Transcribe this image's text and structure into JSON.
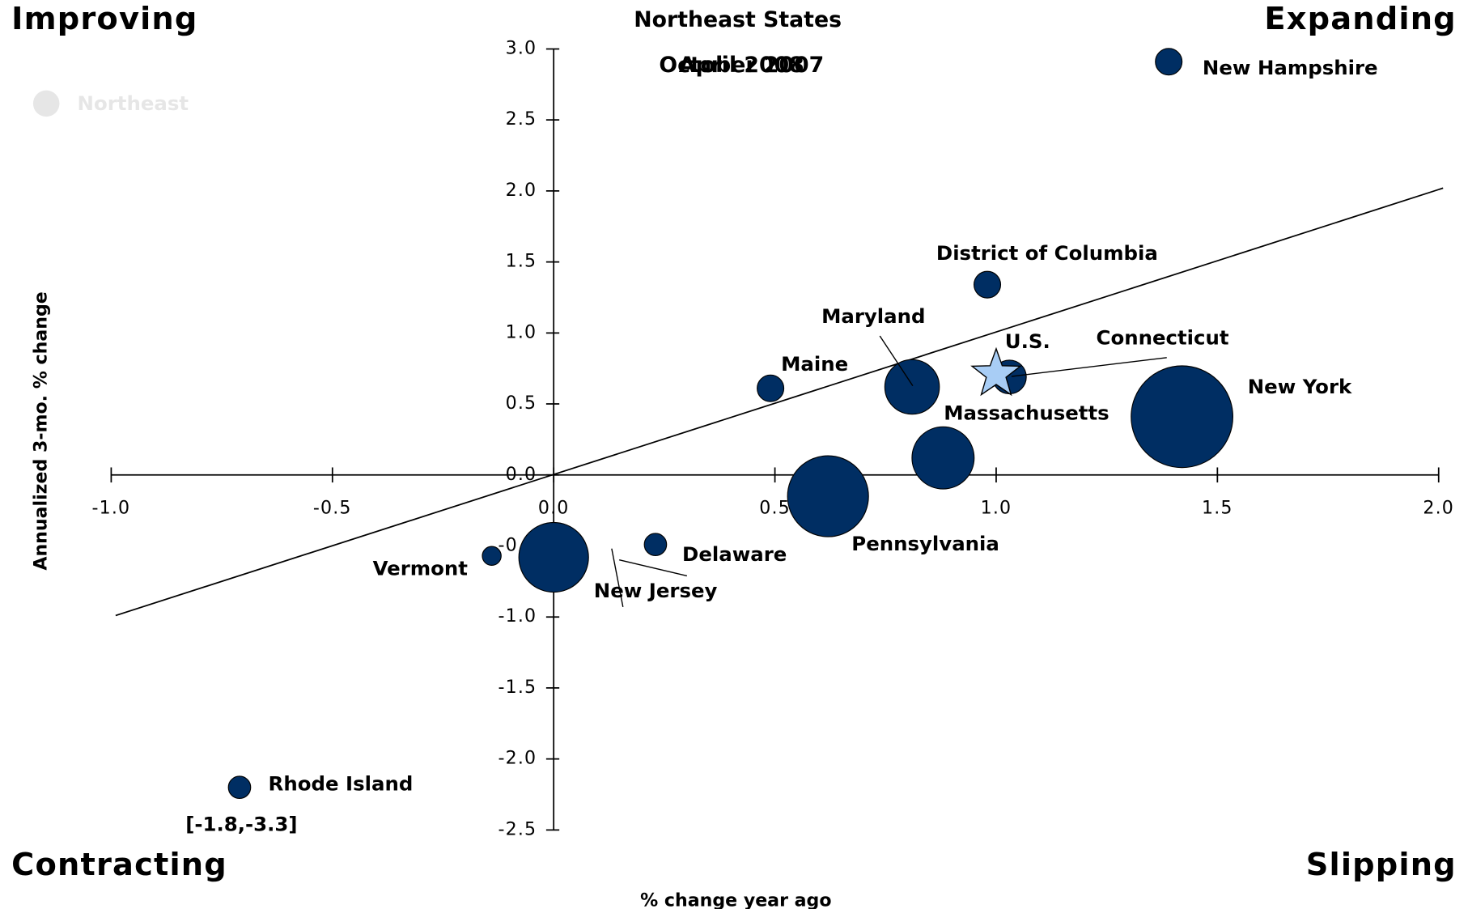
{
  "chart_data": {
    "type": "bubble",
    "title": "Northeast States",
    "subtitles": [
      "October 2007",
      "April 2008"
    ],
    "quadrant_labels": {
      "top_left": "Improving",
      "top_right": "Expanding",
      "bottom_left": "Contracting",
      "bottom_right": "Slipping"
    },
    "x_label": "% change year ago",
    "y_label": "Annualized 3-mo. % change",
    "xlim": [
      -1.0,
      2.0
    ],
    "ylim": [
      -2.5,
      3.0
    ],
    "xticks": [
      {
        "value": -1,
        "label": "-1.0"
      },
      -0.5,
      {
        "value": 0,
        "label": "0.0"
      },
      0.5,
      {
        "value": 1,
        "label": "1.0"
      },
      1.5,
      {
        "value": 2,
        "label": "2.0"
      }
    ],
    "yticks": [
      {
        "value": -2.5,
        "label": "-2.5"
      },
      {
        "value": -2,
        "label": "-2.0"
      },
      {
        "value": -1.5,
        "label": "-1.5"
      },
      {
        "value": -1,
        "label": "-1.0"
      },
      {
        "value": -0.5,
        "label": "-0.5"
      },
      {
        "value": 0,
        "label": "0.0"
      },
      {
        "value": 0.5,
        "label": "0.5"
      },
      {
        "value": 1,
        "label": "1.0"
      },
      {
        "value": 1.5,
        "label": "1.5"
      },
      {
        "value": 2,
        "label": "2.0"
      },
      {
        "value": 2.5,
        "label": "2.5"
      },
      {
        "value": 3,
        "label": "3.0"
      }
    ],
    "legend_color": "#e6e6e6",
    "series": [
      {
        "name": "Northeast",
        "color": "#002e63",
        "labels": [
          "New Hampshire",
          "District of Columbia",
          "Maine",
          "Maryland",
          "Connecticut",
          "New York",
          "Massachusetts",
          "Pennsylvania",
          "Delaware",
          "New Jersey",
          "Vermont",
          "Rhode Island"
        ],
        "x": [
          1.39,
          0.98,
          0.49,
          0.81,
          1.03,
          1.42,
          0.88,
          0.62,
          0.23,
          0.0,
          -0.14,
          -0.71
        ],
        "y": [
          2.91,
          1.34,
          0.61,
          0.62,
          0.69,
          0.41,
          0.12,
          -0.15,
          -0.49,
          -0.58,
          -0.57,
          -2.2
        ],
        "sizes": [
          20,
          20,
          20,
          84,
          32,
          292,
          109,
          185,
          14,
          137,
          10,
          14
        ]
      }
    ],
    "reference": {
      "name": "U.S.",
      "x": 1.0,
      "y": 0.71,
      "color": "#a8cdf5"
    },
    "annotation": "[-1.8,-3.3]",
    "trend_line": {
      "x": [
        -0.99,
        2.01
      ],
      "y": [
        -0.99,
        2.02
      ]
    }
  }
}
